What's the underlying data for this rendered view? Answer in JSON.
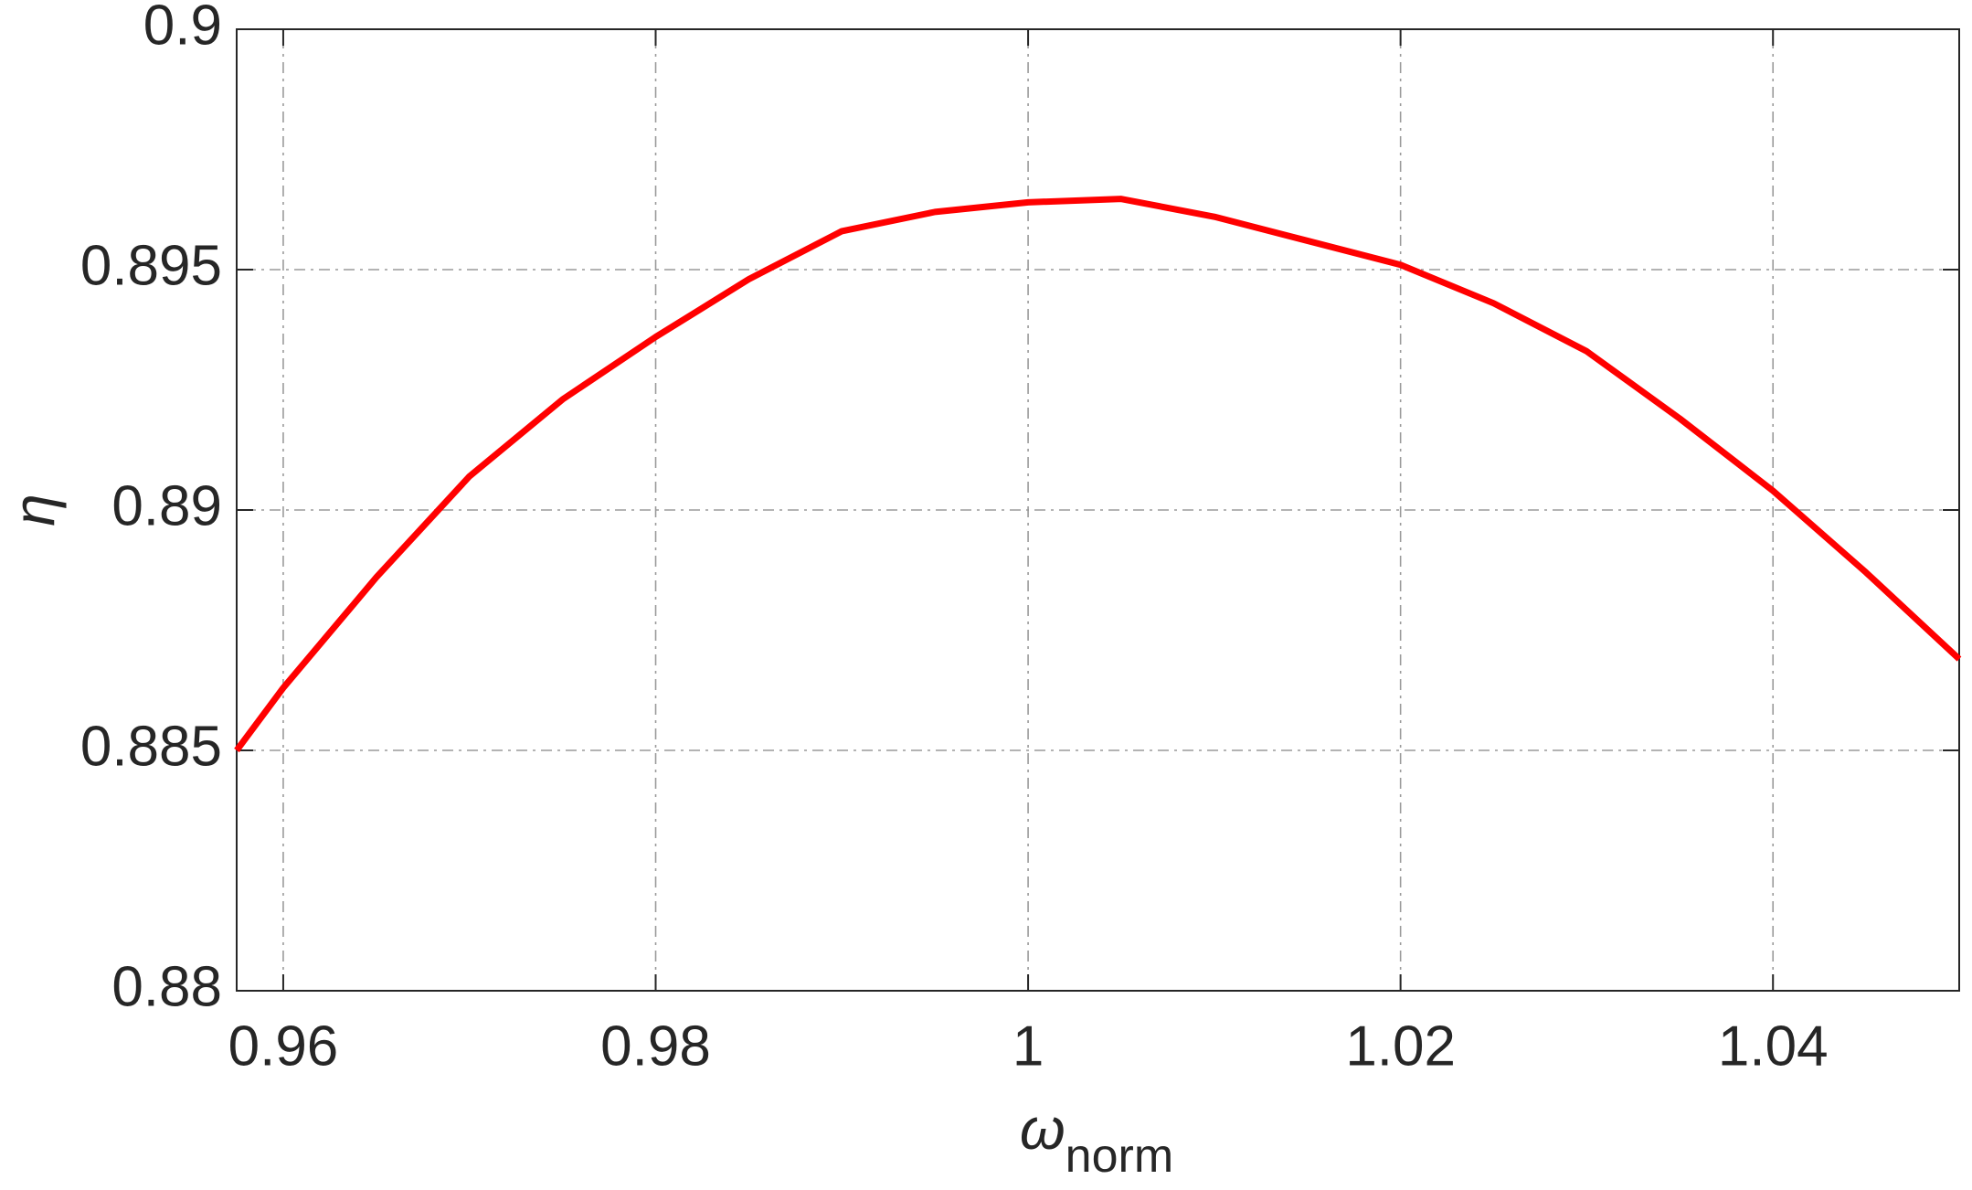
{
  "chart_data": {
    "type": "line",
    "x_label": {
      "symbol": "ω",
      "subscript": "norm"
    },
    "y_label": "η",
    "x": [
      0.9575,
      0.96,
      0.965,
      0.97,
      0.975,
      0.98,
      0.985,
      0.99,
      0.995,
      1.0,
      1.005,
      1.01,
      1.015,
      1.02,
      1.025,
      1.03,
      1.035,
      1.04,
      1.045,
      1.05
    ],
    "series": [
      {
        "color": "#ff0000",
        "values": [
          0.885,
          0.8863,
          0.8886,
          0.8907,
          0.8923,
          0.8936,
          0.8948,
          0.8958,
          0.8962,
          0.8964,
          0.89647,
          0.8961,
          0.8956,
          0.8951,
          0.8943,
          0.8933,
          0.8919,
          0.8904,
          0.8887,
          0.8869
        ]
      }
    ],
    "xlim": [
      0.9575,
      1.05
    ],
    "xticks": [
      0.96,
      0.98,
      1,
      1.02,
      1.04
    ],
    "ylim": [
      0.88,
      0.9
    ],
    "yticks": [
      0.88,
      0.885,
      0.89,
      0.895,
      0.9
    ],
    "grid": true
  }
}
